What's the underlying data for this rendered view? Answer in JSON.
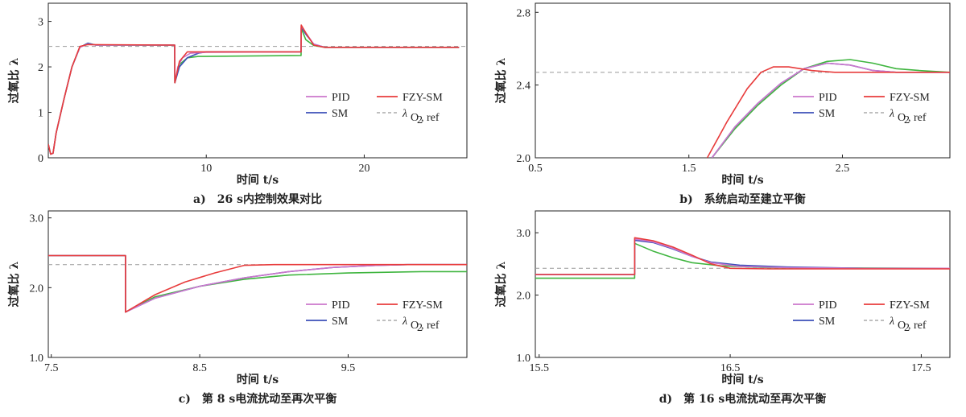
{
  "colors": {
    "pid": "#cc77cc",
    "sm": "#3b4fb8",
    "fzy": "#e83c3c",
    "green": "#3fb53f",
    "ref": "#999999"
  },
  "legend": {
    "pid": "PID",
    "sm": "SM",
    "fzy": "FZY-SM",
    "ref_main": "λ",
    "ref_sub1": "O",
    "ref_sub2": "2",
    "ref_sub3": ", ref"
  },
  "chart_data": [
    {
      "id": "a",
      "type": "line",
      "caption": "a)　26 s内控制效果对比",
      "xlabel": "时间 t/s",
      "ylabel": "过氧比 λ",
      "xlim": [
        0,
        26.5
      ],
      "ylim": [
        0,
        3.4
      ],
      "xticks": [
        10,
        20
      ],
      "yticks": [
        0,
        1,
        2,
        3
      ],
      "ref": 2.45,
      "series": [
        {
          "name": "PID",
          "key": "pid",
          "points": [
            [
              0,
              0.3
            ],
            [
              0.15,
              0.08
            ],
            [
              0.3,
              0.1
            ],
            [
              0.5,
              0.55
            ],
            [
              1,
              1.3
            ],
            [
              1.5,
              2.0
            ],
            [
              2,
              2.43
            ],
            [
              2.5,
              2.5
            ],
            [
              3,
              2.48
            ],
            [
              8,
              2.48
            ],
            [
              8.01,
              1.65
            ],
            [
              8.2,
              2.0
            ],
            [
              8.5,
              2.2
            ],
            [
              9,
              2.3
            ],
            [
              10,
              2.32
            ],
            [
              16,
              2.33
            ],
            [
              16.01,
              2.9
            ],
            [
              16.3,
              2.75
            ],
            [
              16.8,
              2.5
            ],
            [
              17.5,
              2.43
            ],
            [
              26,
              2.43
            ]
          ]
        },
        {
          "name": "SM",
          "key": "sm",
          "points": [
            [
              0,
              0.3
            ],
            [
              0.15,
              0.08
            ],
            [
              0.3,
              0.1
            ],
            [
              0.5,
              0.55
            ],
            [
              1,
              1.3
            ],
            [
              1.5,
              2.0
            ],
            [
              2,
              2.43
            ],
            [
              2.5,
              2.52
            ],
            [
              3,
              2.48
            ],
            [
              8,
              2.48
            ],
            [
              8.01,
              1.65
            ],
            [
              8.3,
              2.0
            ],
            [
              8.8,
              2.2
            ],
            [
              9.5,
              2.3
            ],
            [
              10,
              2.33
            ],
            [
              16,
              2.33
            ],
            [
              16.01,
              2.88
            ],
            [
              16.3,
              2.72
            ],
            [
              16.8,
              2.5
            ],
            [
              17.5,
              2.43
            ],
            [
              26,
              2.43
            ]
          ]
        },
        {
          "name": "FZY-SM",
          "key": "fzy",
          "points": [
            [
              0,
              0.3
            ],
            [
              0.15,
              0.08
            ],
            [
              0.3,
              0.1
            ],
            [
              0.5,
              0.55
            ],
            [
              1,
              1.3
            ],
            [
              1.5,
              2.0
            ],
            [
              2,
              2.45
            ],
            [
              2.5,
              2.49
            ],
            [
              8,
              2.48
            ],
            [
              8.01,
              1.65
            ],
            [
              8.3,
              2.12
            ],
            [
              8.8,
              2.33
            ],
            [
              16,
              2.33
            ],
            [
              16.01,
              2.92
            ],
            [
              16.3,
              2.75
            ],
            [
              16.8,
              2.48
            ],
            [
              17.5,
              2.43
            ],
            [
              26,
              2.43
            ]
          ]
        },
        {
          "name": "",
          "key": "green",
          "points": [
            [
              0,
              0.3
            ],
            [
              0.15,
              0.08
            ],
            [
              0.3,
              0.1
            ],
            [
              0.5,
              0.55
            ],
            [
              1,
              1.3
            ],
            [
              1.5,
              2.0
            ],
            [
              2,
              2.43
            ],
            [
              2.5,
              2.52
            ],
            [
              3,
              2.48
            ],
            [
              8,
              2.48
            ],
            [
              8.01,
              1.65
            ],
            [
              8.3,
              2.05
            ],
            [
              8.8,
              2.2
            ],
            [
              9.5,
              2.23
            ],
            [
              16,
              2.25
            ],
            [
              16.01,
              2.85
            ],
            [
              16.3,
              2.6
            ],
            [
              16.8,
              2.47
            ],
            [
              17.5,
              2.43
            ],
            [
              26,
              2.43
            ]
          ]
        }
      ]
    },
    {
      "id": "b",
      "type": "line",
      "caption": "b)　系统启动至建立平衡",
      "xlabel": "时间 t/s",
      "ylabel": "过氧比 λ",
      "xlim": [
        0.5,
        3.2
      ],
      "ylim": [
        2.0,
        2.85
      ],
      "xticks": [
        0.5,
        1.5,
        2.5
      ],
      "yticks": [
        2.0,
        2.4,
        2.8
      ],
      "ref": 2.47,
      "series": [
        {
          "name": "PID",
          "key": "pid",
          "points": [
            [
              1.65,
              2.0
            ],
            [
              1.8,
              2.17
            ],
            [
              1.95,
              2.3
            ],
            [
              2.1,
              2.41
            ],
            [
              2.25,
              2.49
            ],
            [
              2.4,
              2.52
            ],
            [
              2.55,
              2.51
            ],
            [
              2.7,
              2.48
            ],
            [
              2.85,
              2.47
            ],
            [
              3.2,
              2.47
            ]
          ]
        },
        {
          "name": "SM",
          "key": "sm",
          "points": [
            [
              1.65,
              2.0
            ],
            [
              1.8,
              2.17
            ],
            [
              1.95,
              2.3
            ],
            [
              2.1,
              2.41
            ],
            [
              2.25,
              2.49
            ],
            [
              2.4,
              2.52
            ],
            [
              2.55,
              2.51
            ],
            [
              2.7,
              2.48
            ],
            [
              2.85,
              2.47
            ],
            [
              3.2,
              2.47
            ]
          ]
        },
        {
          "name": "FZY-SM",
          "key": "fzy",
          "points": [
            [
              1.62,
              2.0
            ],
            [
              1.75,
              2.2
            ],
            [
              1.88,
              2.38
            ],
            [
              1.97,
              2.47
            ],
            [
              2.05,
              2.5
            ],
            [
              2.15,
              2.5
            ],
            [
              2.3,
              2.48
            ],
            [
              2.45,
              2.47
            ],
            [
              3.2,
              2.47
            ]
          ]
        },
        {
          "name": "",
          "key": "green",
          "points": [
            [
              1.65,
              2.0
            ],
            [
              1.8,
              2.16
            ],
            [
              1.95,
              2.29
            ],
            [
              2.1,
              2.4
            ],
            [
              2.25,
              2.49
            ],
            [
              2.4,
              2.53
            ],
            [
              2.55,
              2.54
            ],
            [
              2.7,
              2.52
            ],
            [
              2.85,
              2.49
            ],
            [
              3.0,
              2.48
            ],
            [
              3.2,
              2.47
            ]
          ]
        }
      ]
    },
    {
      "id": "c",
      "type": "line",
      "caption": "c)　第 8 s电流扰动至再次平衡",
      "xlabel": "时间 t/s",
      "ylabel": "过氧比 λ",
      "xlim": [
        7.48,
        10.3
      ],
      "ylim": [
        1.0,
        3.1
      ],
      "xticks": [
        7.5,
        8.5,
        9.5
      ],
      "yticks": [
        1.0,
        2.0,
        3.0
      ],
      "ref": 2.33,
      "series": [
        {
          "name": "PID",
          "key": "pid",
          "points": [
            [
              7.48,
              2.46
            ],
            [
              8.0,
              2.46
            ],
            [
              8.0,
              1.65
            ],
            [
              8.2,
              1.85
            ],
            [
              8.5,
              2.02
            ],
            [
              8.8,
              2.14
            ],
            [
              9.1,
              2.23
            ],
            [
              9.4,
              2.29
            ],
            [
              9.7,
              2.32
            ],
            [
              9.9,
              2.33
            ],
            [
              10.3,
              2.33
            ]
          ]
        },
        {
          "name": "SM",
          "key": "sm",
          "points": [
            [
              7.48,
              2.46
            ],
            [
              8.0,
              2.46
            ],
            [
              8.0,
              1.65
            ],
            [
              8.2,
              1.85
            ],
            [
              8.5,
              2.02
            ],
            [
              8.8,
              2.14
            ],
            [
              9.1,
              2.23
            ],
            [
              9.4,
              2.29
            ],
            [
              9.7,
              2.32
            ],
            [
              9.9,
              2.33
            ],
            [
              10.3,
              2.33
            ]
          ]
        },
        {
          "name": "FZY-SM",
          "key": "fzy",
          "points": [
            [
              7.48,
              2.46
            ],
            [
              8.0,
              2.46
            ],
            [
              8.0,
              1.65
            ],
            [
              8.2,
              1.9
            ],
            [
              8.4,
              2.08
            ],
            [
              8.6,
              2.21
            ],
            [
              8.8,
              2.32
            ],
            [
              9.0,
              2.33
            ],
            [
              10.3,
              2.33
            ]
          ]
        },
        {
          "name": "",
          "key": "green",
          "points": [
            [
              7.48,
              2.46
            ],
            [
              8.0,
              2.46
            ],
            [
              8.0,
              1.65
            ],
            [
              8.2,
              1.87
            ],
            [
              8.5,
              2.02
            ],
            [
              8.8,
              2.12
            ],
            [
              9.1,
              2.18
            ],
            [
              9.5,
              2.21
            ],
            [
              10.0,
              2.23
            ],
            [
              10.3,
              2.23
            ]
          ]
        }
      ]
    },
    {
      "id": "d",
      "type": "line",
      "caption": "d)　第 16 s电流扰动至再次平衡",
      "xlabel": "时间 t/s",
      "ylabel": "过氧比 λ",
      "xlim": [
        15.48,
        17.65
      ],
      "ylim": [
        1.0,
        3.35
      ],
      "xticks": [
        15.5,
        16.5,
        17.5
      ],
      "yticks": [
        1.0,
        2.0,
        3.0
      ],
      "ref": 2.43,
      "series": [
        {
          "name": "PID",
          "key": "pid",
          "points": [
            [
              15.48,
              2.33
            ],
            [
              16.0,
              2.33
            ],
            [
              16.0,
              2.9
            ],
            [
              16.1,
              2.85
            ],
            [
              16.2,
              2.75
            ],
            [
              16.3,
              2.62
            ],
            [
              16.4,
              2.52
            ],
            [
              16.55,
              2.46
            ],
            [
              16.8,
              2.44
            ],
            [
              17.2,
              2.43
            ],
            [
              17.65,
              2.43
            ]
          ]
        },
        {
          "name": "SM",
          "key": "sm",
          "points": [
            [
              15.48,
              2.33
            ],
            [
              16.0,
              2.33
            ],
            [
              16.0,
              2.88
            ],
            [
              16.1,
              2.84
            ],
            [
              16.2,
              2.74
            ],
            [
              16.3,
              2.62
            ],
            [
              16.4,
              2.53
            ],
            [
              16.55,
              2.48
            ],
            [
              16.8,
              2.45
            ],
            [
              17.2,
              2.43
            ],
            [
              17.65,
              2.43
            ]
          ]
        },
        {
          "name": "FZY-SM",
          "key": "fzy",
          "points": [
            [
              15.48,
              2.33
            ],
            [
              16.0,
              2.33
            ],
            [
              16.0,
              2.92
            ],
            [
              16.1,
              2.87
            ],
            [
              16.2,
              2.77
            ],
            [
              16.3,
              2.64
            ],
            [
              16.4,
              2.5
            ],
            [
              16.5,
              2.43
            ],
            [
              16.7,
              2.42
            ],
            [
              17.65,
              2.42
            ]
          ]
        },
        {
          "name": "",
          "key": "green",
          "points": [
            [
              15.48,
              2.27
            ],
            [
              16.0,
              2.27
            ],
            [
              16.0,
              2.83
            ],
            [
              16.1,
              2.7
            ],
            [
              16.2,
              2.6
            ],
            [
              16.3,
              2.52
            ],
            [
              16.45,
              2.47
            ],
            [
              16.7,
              2.44
            ],
            [
              17.65,
              2.43
            ]
          ]
        }
      ]
    }
  ]
}
